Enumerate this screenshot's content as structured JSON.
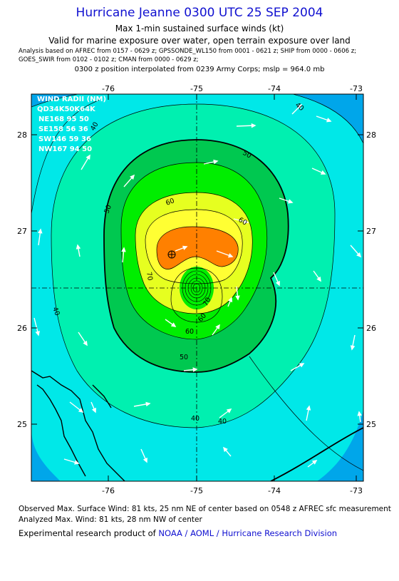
{
  "header": {
    "title": "Hurricane Jeanne 0300 UTC 25 SEP 2004",
    "subtitle1": "Max 1-min sustained surface winds (kt)",
    "subtitle2": "Valid for marine exposure over water, open terrain exposure over land",
    "analysis_line1": "Analysis based on  AFREC from 0157 - 0629 z;  GPSSONDE_WL150 from 0001 - 0621 z;  SHIP from 0000 - 0606 z;",
    "analysis_line2": "GOES_SWIR from 0102 - 0102 z;  CMAN from 0000 - 0629 z;",
    "position_line": "0300 z position interpolated from 0239 Army Corps; mslp = 964.0 mb"
  },
  "map": {
    "lon_ticks": [
      "-76",
      "-75",
      "-74",
      "-73"
    ],
    "lat_ticks": [
      "28",
      "27",
      "26",
      "25"
    ],
    "center": {
      "lon": -75.0,
      "lat": 26.4
    },
    "max_wind_marker": {
      "lon": -75.3,
      "lat": 26.75
    },
    "contour_labels": [
      "40",
      "40",
      "40",
      "40",
      "40",
      "50",
      "50",
      "50",
      "60",
      "60",
      "60",
      "60",
      "70",
      "70"
    ],
    "fill_colors": {
      "lt30": "#00a6ea",
      "30_40": "#00e8e8",
      "40_50": "#00f0b0",
      "50_60": "#00c850",
      "60_70": "#00ee00",
      "70_80": "#e6ff20",
      "80_90": "#ffff33",
      "90_100": "#ff8000"
    }
  },
  "wind_radii": {
    "heading": "WIND RADII (NM)",
    "columns": "QD34K50K64K",
    "rows": [
      "NE168 95 50",
      "SE158 56 36",
      "SW146 59 36",
      "NW167 94 50"
    ]
  },
  "footer": {
    "observed": "Observed Max. Surface Wind: 81 kts, 25 nm NE of center based on 0548 z AFREC sfc measurement",
    "analyzed": "Analyzed Max. Wind: 81 kts, 28 nm NW of center",
    "experimental_prefix": "Experimental research product of",
    "experimental_org": "NOAA / AOML / Hurricane Research Division"
  }
}
